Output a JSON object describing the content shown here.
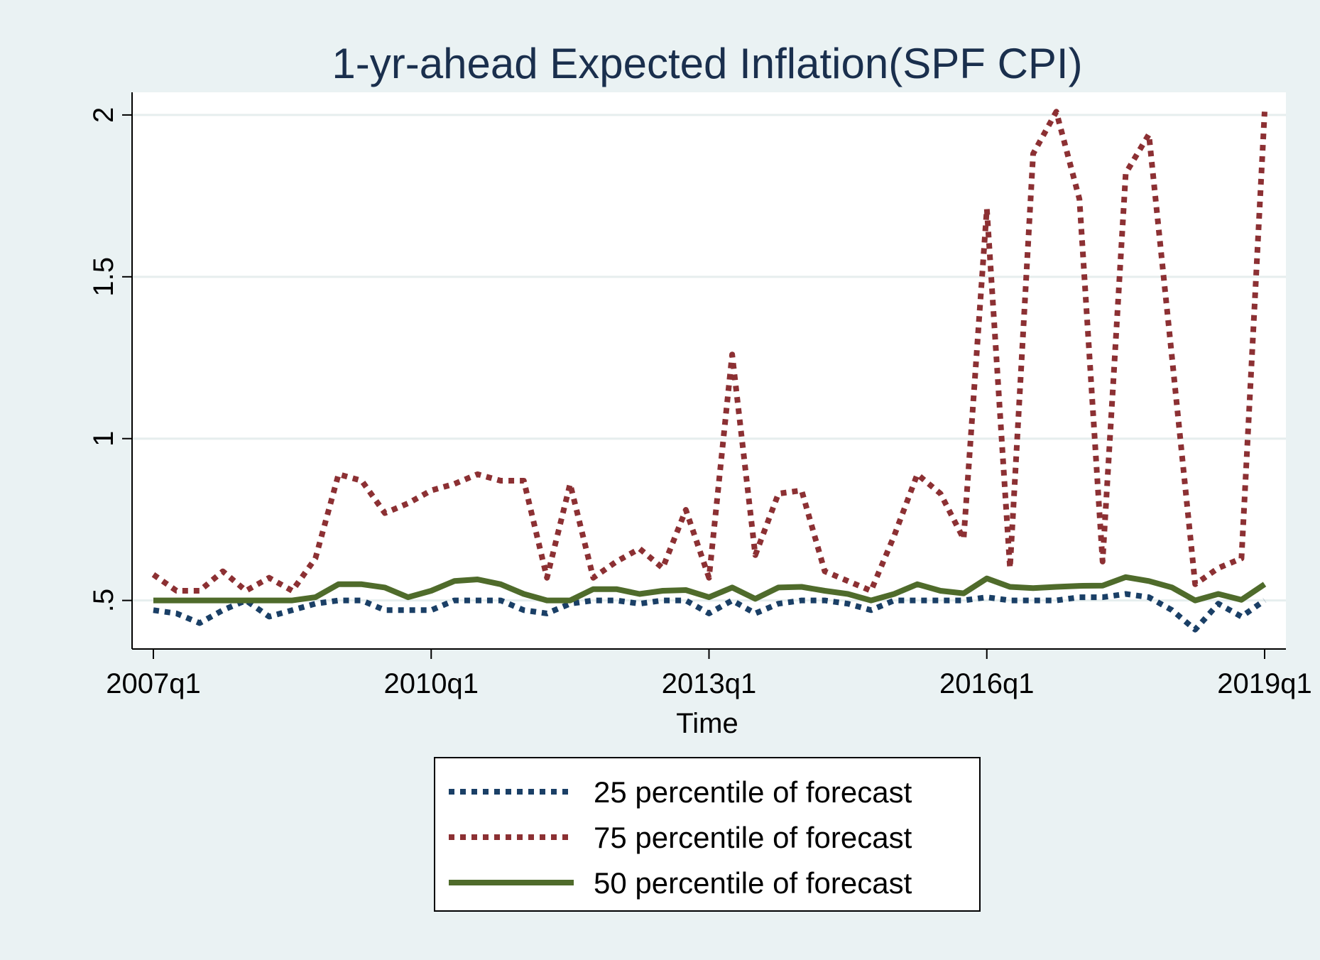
{
  "chart_data": {
    "type": "line",
    "title": "1-yr-ahead Expected Inflation(SPF CPI)",
    "xlabel": "Time",
    "ylabel": "",
    "x_tick_labels": [
      "2007q1",
      "2010q1",
      "2013q1",
      "2016q1",
      "2019q1"
    ],
    "y_ticks": [
      0.5,
      1,
      1.5,
      2
    ],
    "y_tick_labels": [
      ".5",
      "1",
      "1.5",
      "2"
    ],
    "ylim": [
      0.35,
      2.07
    ],
    "xlim": [
      "2007q1",
      "2019q1"
    ],
    "grid": true,
    "legend_position": "bottom",
    "x": [
      "2007q1",
      "2007q2",
      "2007q3",
      "2007q4",
      "2008q1",
      "2008q2",
      "2008q3",
      "2008q4",
      "2009q1",
      "2009q2",
      "2009q3",
      "2009q4",
      "2010q1",
      "2010q2",
      "2010q3",
      "2010q4",
      "2011q1",
      "2011q2",
      "2011q3",
      "2011q4",
      "2012q1",
      "2012q2",
      "2012q3",
      "2012q4",
      "2013q1",
      "2013q2",
      "2013q3",
      "2013q4",
      "2014q1",
      "2014q2",
      "2014q3",
      "2014q4",
      "2015q1",
      "2015q2",
      "2015q3",
      "2015q4",
      "2016q1",
      "2016q2",
      "2016q3",
      "2016q4",
      "2017q1",
      "2017q2",
      "2017q3",
      "2017q4",
      "2018q1",
      "2018q2",
      "2018q3",
      "2018q4",
      "2019q1"
    ],
    "series": [
      {
        "name": "25 percentile of forecast",
        "color": "#1a3f66",
        "style": "dotted",
        "values": [
          0.47,
          0.46,
          0.43,
          0.47,
          0.5,
          0.45,
          0.47,
          0.49,
          0.5,
          0.5,
          0.47,
          0.47,
          0.47,
          0.5,
          0.5,
          0.5,
          0.47,
          0.46,
          0.49,
          0.5,
          0.5,
          0.49,
          0.5,
          0.5,
          0.46,
          0.5,
          0.46,
          0.49,
          0.5,
          0.5,
          0.49,
          0.47,
          0.5,
          0.5,
          0.5,
          0.5,
          0.51,
          0.5,
          0.5,
          0.5,
          0.51,
          0.51,
          0.52,
          0.51,
          0.47,
          0.41,
          0.49,
          0.45,
          0.5
        ]
      },
      {
        "name": "75 percentile of forecast",
        "color": "#8c3033",
        "style": "dotted",
        "values": [
          0.58,
          0.53,
          0.53,
          0.59,
          0.53,
          0.57,
          0.53,
          0.63,
          0.89,
          0.87,
          0.77,
          0.8,
          0.84,
          0.86,
          0.89,
          0.87,
          0.87,
          0.57,
          0.86,
          0.57,
          0.62,
          0.66,
          0.6,
          0.78,
          0.57,
          1.26,
          0.64,
          0.83,
          0.84,
          0.59,
          0.56,
          0.53,
          0.7,
          0.89,
          0.83,
          0.69,
          1.71,
          0.6,
          1.88,
          2.01,
          1.74,
          0.62,
          1.82,
          1.94,
          1.25,
          0.55,
          0.6,
          0.63,
          2.01
        ]
      },
      {
        "name": "50 percentile of forecast",
        "color": "#4f6b2b",
        "style": "solid",
        "values": [
          0.5,
          0.5,
          0.5,
          0.5,
          0.5,
          0.5,
          0.5,
          0.51,
          0.55,
          0.55,
          0.54,
          0.51,
          0.53,
          0.56,
          0.565,
          0.55,
          0.52,
          0.5,
          0.5,
          0.535,
          0.535,
          0.52,
          0.53,
          0.532,
          0.51,
          0.54,
          0.505,
          0.54,
          0.542,
          0.53,
          0.52,
          0.5,
          0.52,
          0.55,
          0.53,
          0.522,
          0.568,
          0.542,
          0.538,
          0.542,
          0.545,
          0.546,
          0.572,
          0.56,
          0.54,
          0.5,
          0.52,
          0.502,
          0.55
        ]
      }
    ]
  }
}
